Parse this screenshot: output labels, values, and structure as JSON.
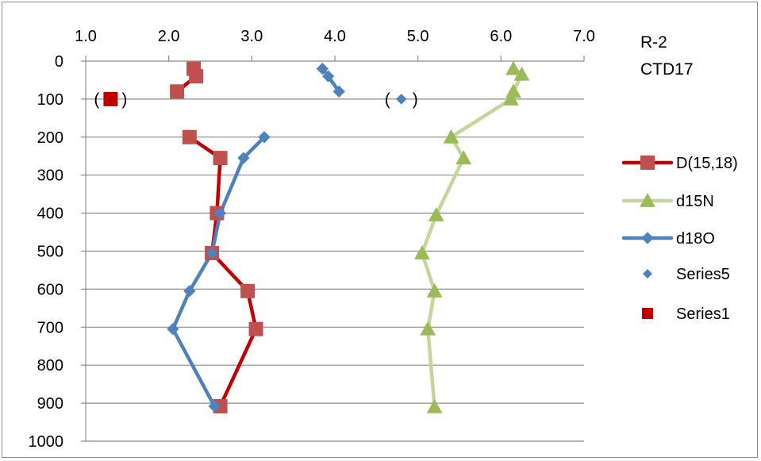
{
  "chart_data": {
    "type": "line",
    "title_lines": [
      "R-2",
      "CTD17"
    ],
    "x_axis": {
      "position": "top",
      "range": [
        1.0,
        7.0
      ],
      "ticks": [
        "1.0",
        "2.0",
        "3.0",
        "4.0",
        "5.0",
        "6.0",
        "7.0"
      ],
      "label": ""
    },
    "y_axis": {
      "reversed": true,
      "range": [
        0,
        1000
      ],
      "ticks": [
        "0",
        "100",
        "200",
        "300",
        "400",
        "500",
        "600",
        "700",
        "800",
        "900",
        "1000"
      ],
      "label": ""
    },
    "grid": {
      "horizontal": true,
      "vertical": false
    },
    "legend_position": "right",
    "series": [
      {
        "name": "D(15,18)",
        "color": "#c0504d",
        "line_color": "#c00000",
        "marker": "square",
        "segments": [
          [
            {
              "x": 2.3,
              "y": 20
            },
            {
              "x": 2.33,
              "y": 40
            },
            {
              "x": 2.1,
              "y": 80
            }
          ],
          [
            {
              "x": 2.25,
              "y": 200
            },
            {
              "x": 2.62,
              "y": 255
            },
            {
              "x": 2.58,
              "y": 400
            },
            {
              "x": 2.52,
              "y": 505
            },
            {
              "x": 2.95,
              "y": 605
            },
            {
              "x": 3.05,
              "y": 705
            },
            {
              "x": 2.62,
              "y": 908
            }
          ]
        ]
      },
      {
        "name": "d15N",
        "color": "#9bbb59",
        "line_color": "#c3d69b",
        "marker": "triangle",
        "segments": [
          [
            {
              "x": 6.15,
              "y": 20
            },
            {
              "x": 6.25,
              "y": 35
            },
            {
              "x": 6.15,
              "y": 80
            },
            {
              "x": 6.12,
              "y": 100
            },
            {
              "x": 5.4,
              "y": 200
            },
            {
              "x": 5.55,
              "y": 255
            },
            {
              "x": 5.22,
              "y": 405
            },
            {
              "x": 5.05,
              "y": 505
            },
            {
              "x": 5.2,
              "y": 605
            },
            {
              "x": 5.12,
              "y": 705
            },
            {
              "x": 5.2,
              "y": 910
            }
          ]
        ]
      },
      {
        "name": "d18O",
        "color": "#4f81bd",
        "line_color": "#4f81bd",
        "marker": "diamond",
        "segments": [
          [
            {
              "x": 3.85,
              "y": 20
            },
            {
              "x": 3.92,
              "y": 40
            },
            {
              "x": 4.05,
              "y": 80
            }
          ],
          [
            {
              "x": 3.15,
              "y": 200
            },
            {
              "x": 2.9,
              "y": 255
            },
            {
              "x": 2.62,
              "y": 400
            },
            {
              "x": 2.52,
              "y": 505
            },
            {
              "x": 2.25,
              "y": 605
            },
            {
              "x": 2.05,
              "y": 705
            },
            {
              "x": 2.55,
              "y": 908
            }
          ]
        ]
      },
      {
        "name": "Series5",
        "color": "#4f81bd",
        "marker": "diamond",
        "points": [
          {
            "x": 4.8,
            "y": 100
          }
        ],
        "annotation": "( )"
      },
      {
        "name": "Series1",
        "color": "#c00000",
        "marker": "square",
        "points": [
          {
            "x": 1.3,
            "y": 100
          }
        ],
        "annotation": "( )"
      }
    ]
  }
}
